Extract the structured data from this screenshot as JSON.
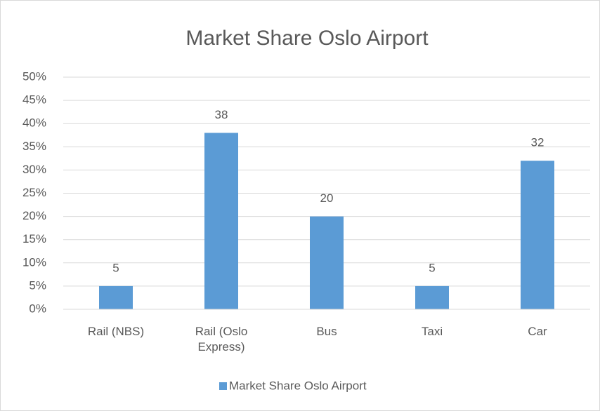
{
  "chart_data": {
    "type": "bar",
    "title": "Market Share Oslo Airport",
    "categories": [
      "Rail (NBS)",
      "Rail (Oslo Express)",
      "Bus",
      "Taxi",
      "Car"
    ],
    "series": [
      {
        "name": "Market Share Oslo Airport",
        "color": "#5b9bd5",
        "values": [
          5,
          38,
          20,
          5,
          32
        ]
      }
    ],
    "ylim": [
      0,
      50
    ],
    "yticks": [
      {
        "value": 0,
        "label": "0%"
      },
      {
        "value": 5,
        "label": "5%"
      },
      {
        "value": 10,
        "label": "10%"
      },
      {
        "value": 15,
        "label": "15%"
      },
      {
        "value": 20,
        "label": "20%"
      },
      {
        "value": 25,
        "label": "25%"
      },
      {
        "value": 30,
        "label": "30%"
      },
      {
        "value": 35,
        "label": "35%"
      },
      {
        "value": 40,
        "label": "40%"
      },
      {
        "value": 45,
        "label": "45%"
      },
      {
        "value": 50,
        "label": "50%"
      }
    ],
    "grid": true,
    "legend": "bottom"
  }
}
